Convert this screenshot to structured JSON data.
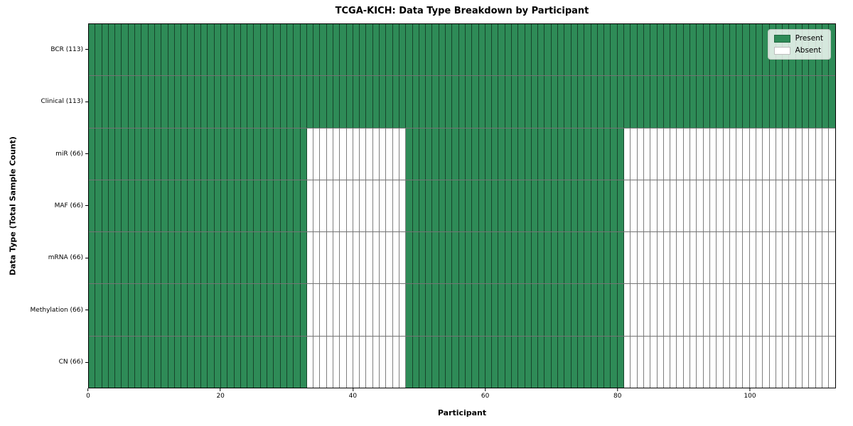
{
  "chart_data": {
    "type": "heatmap",
    "title": "TCGA-KICH: Data Type Breakdown by Participant",
    "xlabel": "Participant",
    "ylabel": "Data Type (Total Sample Count)",
    "xlim": [
      0,
      113
    ],
    "n_participants": 113,
    "x_ticks": [
      0,
      20,
      40,
      60,
      80,
      100
    ],
    "grid": "cell-borders",
    "legend_position": "upper-right",
    "colors": {
      "present": "#2e8b57",
      "absent": "#ffffff"
    },
    "legend": {
      "present_label": "Present",
      "absent_label": "Absent"
    },
    "rows": [
      {
        "label": "BCR (113)",
        "total": 113,
        "present_ranges": [
          [
            0,
            113
          ]
        ]
      },
      {
        "label": "Clinical (113)",
        "total": 113,
        "present_ranges": [
          [
            0,
            113
          ]
        ]
      },
      {
        "label": "miR (66)",
        "total": 66,
        "present_ranges": [
          [
            0,
            33
          ],
          [
            48,
            81
          ]
        ]
      },
      {
        "label": "MAF (66)",
        "total": 66,
        "present_ranges": [
          [
            0,
            33
          ],
          [
            48,
            81
          ]
        ]
      },
      {
        "label": "mRNA (66)",
        "total": 66,
        "present_ranges": [
          [
            0,
            33
          ],
          [
            48,
            81
          ]
        ]
      },
      {
        "label": "Methylation (66)",
        "total": 66,
        "present_ranges": [
          [
            0,
            33
          ],
          [
            48,
            81
          ]
        ]
      },
      {
        "label": "CN (66)",
        "total": 66,
        "present_ranges": [
          [
            0,
            33
          ],
          [
            48,
            81
          ]
        ]
      }
    ]
  }
}
